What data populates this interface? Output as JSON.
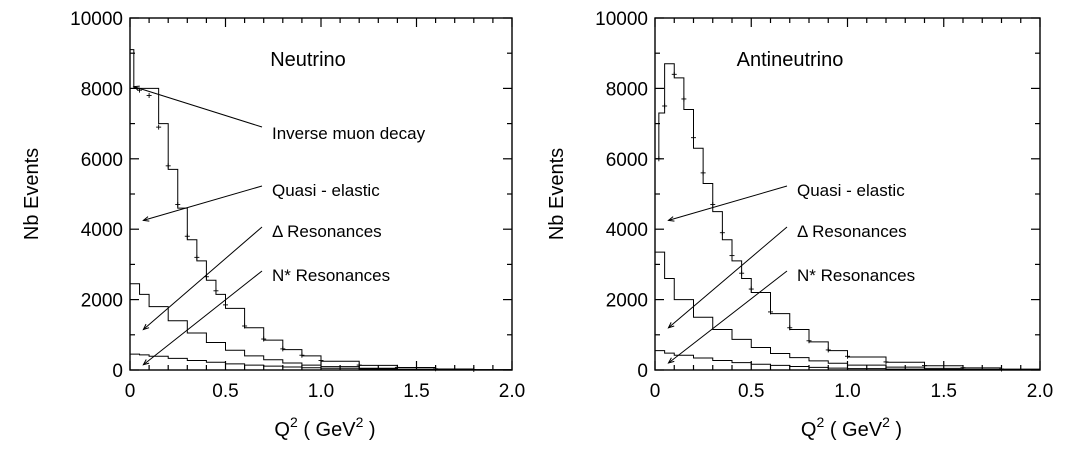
{
  "chart_data": [
    {
      "type": "line",
      "title": "Neutrino",
      "xlabel": "Q",
      "xlabel_sup": "2",
      "xlabel_unit": "( GeV",
      "xlabel_unit_sup": "2",
      "xlabel_close": ")",
      "ylabel": "Nb Events",
      "xlim": [
        0,
        2.0
      ],
      "ylim": [
        0,
        10000
      ],
      "xticks": [
        "0",
        "0.5",
        "1.0",
        "1.5",
        "2.0"
      ],
      "yticks": [
        "0",
        "2000",
        "4000",
        "6000",
        "8000",
        "10000"
      ],
      "xtick_values": [
        0,
        0.5,
        1.0,
        1.5,
        2.0
      ],
      "ytick_values": [
        0,
        2000,
        4000,
        6000,
        8000,
        10000
      ],
      "annotations": [
        {
          "text": "Inverse muon decay",
          "target_x": 0.02,
          "target_y": 8050
        },
        {
          "text": "Quasi - elastic",
          "target_x": 0.07,
          "target_y": 4250
        },
        {
          "text": "Δ Resonances",
          "target_x": 0.07,
          "target_y": 1150
        },
        {
          "text": "N* Resonances",
          "target_x": 0.07,
          "target_y": 150
        }
      ],
      "series": [
        {
          "style": "histogram",
          "x": [
            0.0,
            0.02,
            0.05,
            0.1,
            0.15,
            0.2,
            0.25,
            0.3,
            0.35,
            0.4,
            0.45,
            0.5,
            0.6,
            0.7,
            0.8,
            0.9,
            1.0,
            1.2,
            1.4,
            1.6,
            1.8,
            2.0
          ],
          "y": [
            9100,
            8000,
            8000,
            8000,
            7000,
            5700,
            4600,
            3700,
            3100,
            2550,
            2150,
            1750,
            1200,
            850,
            580,
            400,
            250,
            130,
            70,
            30,
            10,
            0
          ]
        },
        {
          "style": "points",
          "x": [
            0.05,
            0.1,
            0.15,
            0.2,
            0.25,
            0.3,
            0.35,
            0.4,
            0.45,
            0.5,
            0.6,
            0.7,
            0.8,
            0.9,
            1.0,
            1.2,
            1.4,
            1.6,
            1.8
          ],
          "y": [
            7950,
            7800,
            6900,
            5800,
            4700,
            3800,
            3200,
            2650,
            2250,
            1850,
            1250,
            880,
            600,
            420,
            270,
            140,
            75,
            35,
            15
          ]
        },
        {
          "style": "histogram",
          "x": [
            0.0,
            0.05,
            0.1,
            0.2,
            0.3,
            0.4,
            0.5,
            0.6,
            0.7,
            0.8,
            0.9,
            1.0,
            1.2,
            1.4,
            1.6,
            1.8,
            2.0
          ],
          "y": [
            2450,
            2150,
            1800,
            1400,
            1050,
            780,
            560,
            400,
            290,
            200,
            140,
            95,
            50,
            25,
            12,
            5,
            0
          ]
        },
        {
          "style": "histogram",
          "x": [
            0.0,
            0.05,
            0.1,
            0.2,
            0.3,
            0.4,
            0.5,
            0.6,
            0.7,
            0.8,
            0.9,
            1.0,
            1.2,
            1.4,
            1.6,
            1.8,
            2.0
          ],
          "y": [
            450,
            430,
            390,
            330,
            270,
            220,
            175,
            140,
            110,
            85,
            65,
            50,
            30,
            18,
            10,
            4,
            0
          ]
        }
      ]
    },
    {
      "type": "line",
      "title": "Antineutrino",
      "xlabel": "Q",
      "xlabel_sup": "2",
      "xlabel_unit": "( GeV",
      "xlabel_unit_sup": "2",
      "xlabel_close": ")",
      "ylabel": "Nb Events",
      "xlim": [
        0,
        2.0
      ],
      "ylim": [
        0,
        10000
      ],
      "xticks": [
        "0",
        "0.5",
        "1.0",
        "1.5",
        "2.0"
      ],
      "yticks": [
        "0",
        "2000",
        "4000",
        "6000",
        "8000",
        "10000"
      ],
      "xtick_values": [
        0,
        0.5,
        1.0,
        1.5,
        2.0
      ],
      "ytick_values": [
        0,
        2000,
        4000,
        6000,
        8000,
        10000
      ],
      "annotations": [
        {
          "text": "Quasi - elastic",
          "target_x": 0.07,
          "target_y": 4250
        },
        {
          "text": "Δ Resonances",
          "target_x": 0.07,
          "target_y": 1200
        },
        {
          "text": "N* Resonances",
          "target_x": 0.07,
          "target_y": 200
        }
      ],
      "series": [
        {
          "style": "histogram",
          "x": [
            0.0,
            0.02,
            0.05,
            0.1,
            0.15,
            0.2,
            0.25,
            0.3,
            0.35,
            0.4,
            0.45,
            0.5,
            0.6,
            0.7,
            0.8,
            0.9,
            1.0,
            1.2,
            1.4,
            1.6,
            1.8,
            2.0
          ],
          "y": [
            6000,
            7300,
            8700,
            8300,
            7400,
            6300,
            5300,
            4500,
            3700,
            3100,
            2600,
            2200,
            1600,
            1150,
            800,
            550,
            370,
            220,
            120,
            60,
            25,
            0
          ]
        },
        {
          "style": "points",
          "x": [
            0.02,
            0.05,
            0.1,
            0.15,
            0.2,
            0.25,
            0.3,
            0.35,
            0.4,
            0.45,
            0.5,
            0.6,
            0.7,
            0.8,
            0.9,
            1.0,
            1.2,
            1.4,
            1.6,
            1.8
          ],
          "y": [
            6000,
            7500,
            8400,
            7700,
            6600,
            5600,
            4700,
            3900,
            3250,
            2750,
            2300,
            1650,
            1200,
            830,
            570,
            390,
            230,
            125,
            65,
            28
          ]
        },
        {
          "style": "histogram",
          "x": [
            0.0,
            0.05,
            0.1,
            0.2,
            0.3,
            0.4,
            0.5,
            0.6,
            0.7,
            0.8,
            0.9,
            1.0,
            1.2,
            1.4,
            1.6,
            1.8,
            2.0
          ],
          "y": [
            3350,
            2600,
            2000,
            1500,
            1150,
            870,
            640,
            470,
            350,
            260,
            190,
            140,
            80,
            45,
            22,
            10,
            0
          ]
        },
        {
          "style": "histogram",
          "x": [
            0.0,
            0.05,
            0.1,
            0.2,
            0.3,
            0.4,
            0.5,
            0.6,
            0.7,
            0.8,
            0.9,
            1.0,
            1.2,
            1.4,
            1.6,
            1.8,
            2.0
          ],
          "y": [
            550,
            480,
            420,
            340,
            270,
            210,
            165,
            130,
            100,
            75,
            55,
            40,
            25,
            14,
            8,
            3,
            0
          ]
        }
      ]
    }
  ]
}
